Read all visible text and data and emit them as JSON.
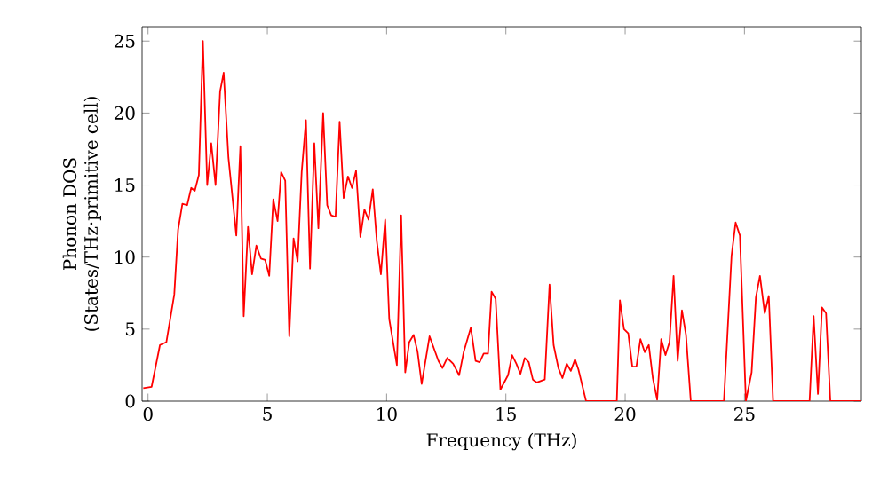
{
  "chart_data": {
    "type": "line",
    "xlabel": "Frequency (THz)",
    "ylabel": "Phonon DOS\n(States/THz·primitive cell)",
    "xlim": [
      -0.25,
      29.9
    ],
    "ylim": [
      0,
      26
    ],
    "xticks": [
      0,
      5,
      10,
      15,
      20,
      25
    ],
    "yticks": [
      0,
      5,
      10,
      15,
      20,
      25
    ],
    "marker": "none",
    "line_style": "solid",
    "series": [
      {
        "color": "#ff0000",
        "x": [
          -0.2,
          0.15,
          0.5,
          0.77,
          1.1,
          1.26,
          1.44,
          1.64,
          1.81,
          1.96,
          2.13,
          2.3,
          2.48,
          2.65,
          2.83,
          3.02,
          3.17,
          3.37,
          3.7,
          3.87,
          4.01,
          4.19,
          4.36,
          4.54,
          4.73,
          4.91,
          5.08,
          5.25,
          5.43,
          5.58,
          5.75,
          5.92,
          6.1,
          6.27,
          6.44,
          6.62,
          6.79,
          6.97,
          7.14,
          7.34,
          7.51,
          7.68,
          7.86,
          8.03,
          8.2,
          8.38,
          8.55,
          8.72,
          8.9,
          9.07,
          9.24,
          9.42,
          9.59,
          9.76,
          9.94,
          10.11,
          10.43,
          10.61,
          10.78,
          10.95,
          11.13,
          11.3,
          11.47,
          11.8,
          12.17,
          12.34,
          12.54,
          12.79,
          13.04,
          13.23,
          13.53,
          13.73,
          13.9,
          14.07,
          14.25,
          14.4,
          14.57,
          14.77,
          15.09,
          15.26,
          15.44,
          15.61,
          15.79,
          15.96,
          16.13,
          16.3,
          16.63,
          16.83,
          17.0,
          17.2,
          17.37,
          17.55,
          17.72,
          17.9,
          18.04,
          18.36,
          19.65,
          19.78,
          19.95,
          20.13,
          20.3,
          20.47,
          20.64,
          20.82,
          20.99,
          21.16,
          21.34,
          21.51,
          21.69,
          21.86,
          22.03,
          22.2,
          22.38,
          22.55,
          22.75,
          24.14,
          24.46,
          24.63,
          24.81,
          25.06,
          25.3,
          25.48,
          25.65,
          25.85,
          26.02,
          26.2,
          27.73,
          27.9,
          28.08,
          28.25,
          28.42,
          28.6,
          29.9
        ],
        "values": [
          0.9,
          1.0,
          3.9,
          4.1,
          7.4,
          11.9,
          13.7,
          13.6,
          14.8,
          14.6,
          15.7,
          25.0,
          15.0,
          17.9,
          15.0,
          21.5,
          22.8,
          16.9,
          11.5,
          17.7,
          5.9,
          12.1,
          8.8,
          10.8,
          9.9,
          9.8,
          8.7,
          14.0,
          12.5,
          15.9,
          15.3,
          4.5,
          11.3,
          9.7,
          15.9,
          19.5,
          9.2,
          17.9,
          12.0,
          20.0,
          13.6,
          12.9,
          12.8,
          19.4,
          14.1,
          15.6,
          14.8,
          16.0,
          11.4,
          13.3,
          12.6,
          14.7,
          11.1,
          8.8,
          12.6,
          5.7,
          2.5,
          12.9,
          2.0,
          4.1,
          4.6,
          3.4,
          1.2,
          4.5,
          2.8,
          2.3,
          3.0,
          2.6,
          1.8,
          3.4,
          5.1,
          2.8,
          2.7,
          3.3,
          3.3,
          7.6,
          7.1,
          0.8,
          1.8,
          3.2,
          2.6,
          1.9,
          3.0,
          2.7,
          1.5,
          1.3,
          1.5,
          8.1,
          3.9,
          2.3,
          1.6,
          2.6,
          2.1,
          2.9,
          2.2,
          0,
          0,
          7.0,
          5.0,
          4.7,
          2.4,
          2.4,
          4.3,
          3.4,
          3.9,
          1.6,
          0.1,
          4.3,
          3.2,
          4.1,
          8.7,
          2.8,
          6.3,
          4.6,
          0,
          0,
          10.1,
          12.4,
          11.5,
          0,
          2.0,
          7.2,
          8.7,
          6.1,
          7.3,
          0,
          0,
          5.9,
          0.5,
          6.5,
          6.1,
          0,
          0
        ]
      }
    ]
  }
}
